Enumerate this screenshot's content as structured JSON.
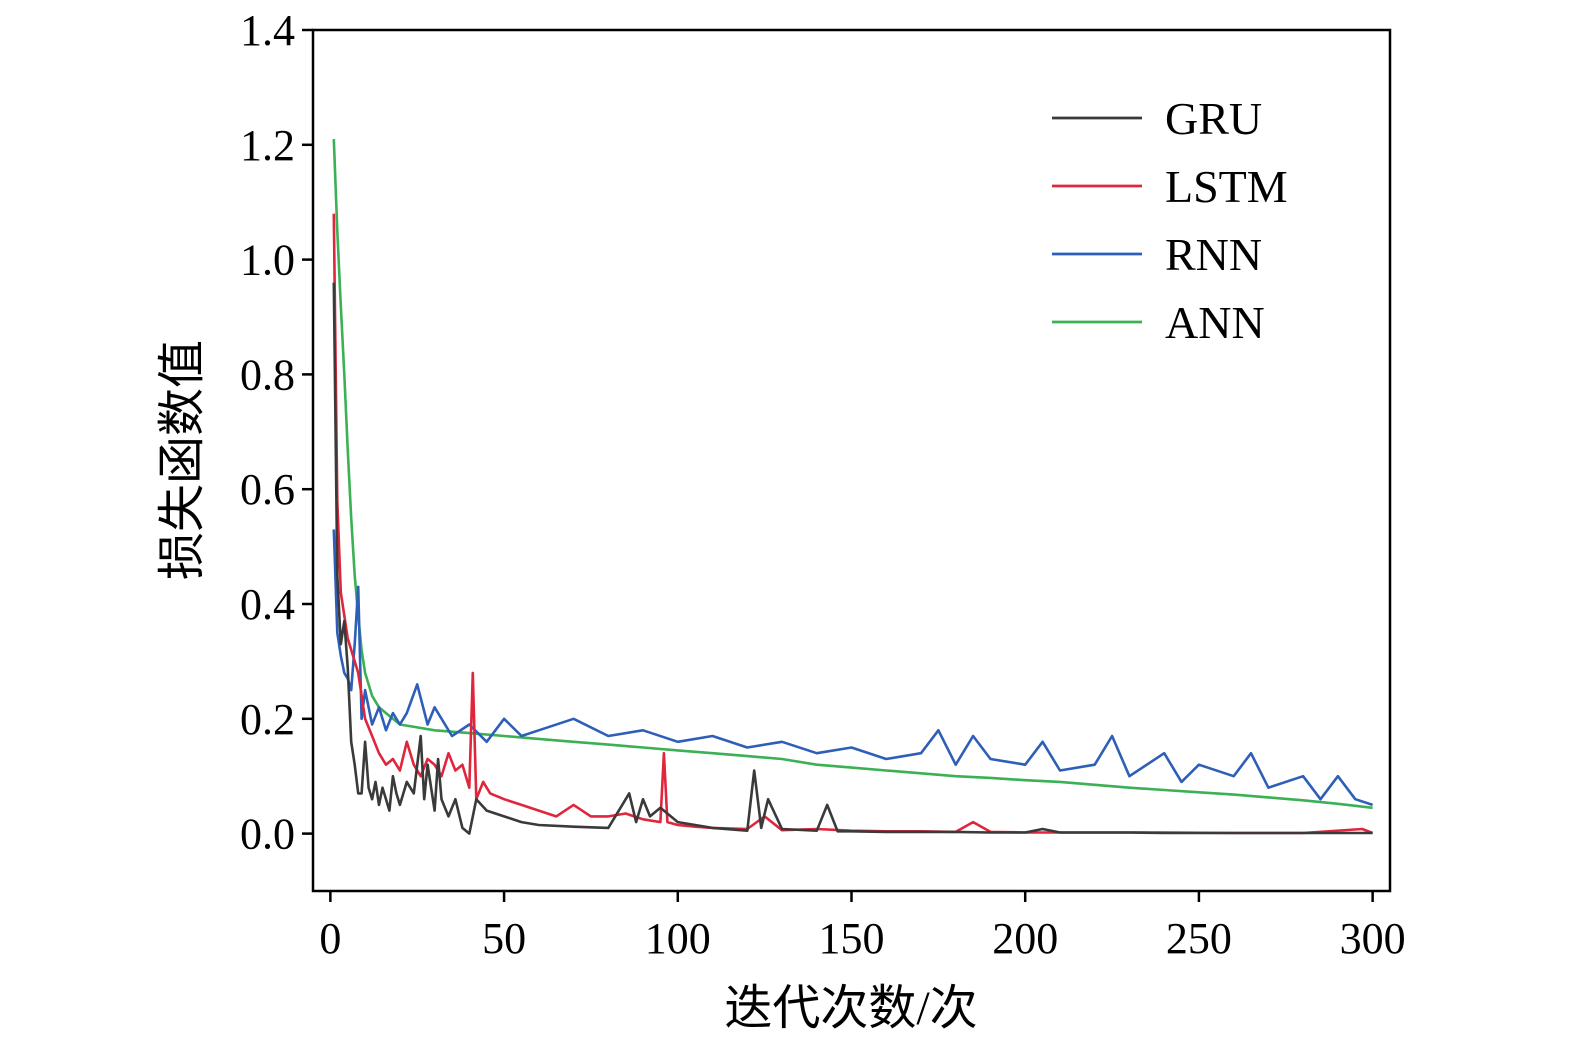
{
  "chart_data": {
    "type": "line",
    "xlabel": "迭代次数/次",
    "ylabel": "损失函数值",
    "xlim": [
      -5,
      305
    ],
    "ylim": [
      -0.1,
      1.4
    ],
    "xticks": [
      0,
      50,
      100,
      150,
      200,
      250,
      300
    ],
    "yticks": [
      0.0,
      0.2,
      0.4,
      0.6,
      0.8,
      1.0,
      1.2,
      1.4
    ],
    "ytick_labels": [
      "0.0",
      "0.2",
      "0.4",
      "0.6",
      "0.8",
      "1.0",
      "1.2",
      "1.4"
    ],
    "legend_position": "top-right",
    "grid": false,
    "series": [
      {
        "name": "GRU",
        "color": "#3a3a3a",
        "x": [
          1,
          2,
          3,
          4,
          5,
          6,
          7,
          8,
          9,
          10,
          11,
          12,
          13,
          14,
          15,
          16,
          17,
          18,
          19,
          20,
          22,
          24,
          26,
          27,
          28,
          30,
          31,
          32,
          34,
          36,
          38,
          40,
          42,
          45,
          50,
          55,
          60,
          70,
          80,
          86,
          88,
          90,
          92,
          95,
          100,
          110,
          120,
          122,
          124,
          126,
          130,
          140,
          143,
          146,
          150,
          160,
          170,
          180,
          190,
          200,
          205,
          210,
          220,
          230,
          240,
          250,
          260,
          270,
          280,
          290,
          300
        ],
        "values": [
          0.96,
          0.45,
          0.33,
          0.37,
          0.29,
          0.16,
          0.12,
          0.07,
          0.07,
          0.16,
          0.08,
          0.06,
          0.09,
          0.05,
          0.08,
          0.06,
          0.04,
          0.1,
          0.07,
          0.05,
          0.09,
          0.07,
          0.17,
          0.06,
          0.12,
          0.04,
          0.13,
          0.06,
          0.03,
          0.06,
          0.01,
          0.0,
          0.06,
          0.04,
          0.03,
          0.02,
          0.015,
          0.012,
          0.01,
          0.07,
          0.02,
          0.06,
          0.03,
          0.045,
          0.02,
          0.01,
          0.005,
          0.11,
          0.01,
          0.06,
          0.008,
          0.005,
          0.05,
          0.004,
          0.004,
          0.003,
          0.003,
          0.003,
          0.002,
          0.002,
          0.008,
          0.002,
          0.002,
          0.002,
          0.001,
          0.001,
          0.001,
          0.001,
          0.001,
          0.001,
          0.001
        ]
      },
      {
        "name": "LSTM",
        "color": "#e0263c",
        "x": [
          1,
          2,
          3,
          4,
          5,
          6,
          7,
          8,
          10,
          12,
          14,
          16,
          18,
          20,
          22,
          24,
          26,
          28,
          30,
          32,
          34,
          36,
          38,
          40,
          41,
          42,
          44,
          46,
          50,
          55,
          60,
          65,
          70,
          75,
          80,
          85,
          90,
          95,
          96,
          97,
          100,
          105,
          110,
          120,
          125,
          130,
          140,
          150,
          160,
          170,
          180,
          185,
          190,
          200,
          220,
          240,
          260,
          280,
          297,
          300
        ],
        "values": [
          1.08,
          0.58,
          0.42,
          0.38,
          0.34,
          0.32,
          0.3,
          0.28,
          0.2,
          0.17,
          0.14,
          0.12,
          0.13,
          0.11,
          0.16,
          0.12,
          0.1,
          0.13,
          0.12,
          0.1,
          0.14,
          0.11,
          0.12,
          0.08,
          0.28,
          0.06,
          0.09,
          0.07,
          0.06,
          0.05,
          0.04,
          0.03,
          0.05,
          0.03,
          0.03,
          0.035,
          0.025,
          0.02,
          0.14,
          0.02,
          0.015,
          0.012,
          0.01,
          0.008,
          0.03,
          0.006,
          0.008,
          0.005,
          0.004,
          0.004,
          0.003,
          0.02,
          0.003,
          0.002,
          0.002,
          0.002,
          0.001,
          0.001,
          0.008,
          0.001
        ]
      },
      {
        "name": "RNN",
        "color": "#2e5fb8",
        "x": [
          1,
          2,
          3,
          4,
          5,
          6,
          7,
          8,
          9,
          10,
          12,
          14,
          16,
          18,
          20,
          22,
          25,
          28,
          30,
          35,
          40,
          45,
          50,
          55,
          60,
          70,
          80,
          90,
          100,
          110,
          120,
          130,
          140,
          150,
          160,
          170,
          175,
          180,
          185,
          190,
          200,
          205,
          210,
          220,
          225,
          230,
          240,
          245,
          250,
          260,
          265,
          270,
          280,
          285,
          290,
          295,
          300
        ],
        "values": [
          0.53,
          0.35,
          0.31,
          0.28,
          0.27,
          0.25,
          0.33,
          0.43,
          0.2,
          0.25,
          0.19,
          0.22,
          0.18,
          0.21,
          0.19,
          0.21,
          0.26,
          0.19,
          0.22,
          0.17,
          0.19,
          0.16,
          0.2,
          0.17,
          0.18,
          0.2,
          0.17,
          0.18,
          0.16,
          0.17,
          0.15,
          0.16,
          0.14,
          0.15,
          0.13,
          0.14,
          0.18,
          0.12,
          0.17,
          0.13,
          0.12,
          0.16,
          0.11,
          0.12,
          0.17,
          0.1,
          0.14,
          0.09,
          0.12,
          0.1,
          0.14,
          0.08,
          0.1,
          0.06,
          0.1,
          0.06,
          0.05
        ]
      },
      {
        "name": "ANN",
        "color": "#3cb054",
        "x": [
          1,
          2,
          3,
          4,
          5,
          6,
          7,
          8,
          9,
          10,
          12,
          14,
          16,
          18,
          20,
          25,
          30,
          40,
          50,
          60,
          70,
          80,
          90,
          100,
          110,
          120,
          130,
          140,
          150,
          160,
          170,
          180,
          190,
          200,
          210,
          220,
          230,
          240,
          250,
          260,
          270,
          280,
          290,
          300
        ],
        "values": [
          1.21,
          1.05,
          0.92,
          0.8,
          0.67,
          0.55,
          0.45,
          0.38,
          0.32,
          0.28,
          0.24,
          0.22,
          0.21,
          0.2,
          0.19,
          0.185,
          0.18,
          0.175,
          0.17,
          0.165,
          0.16,
          0.155,
          0.15,
          0.145,
          0.14,
          0.135,
          0.13,
          0.12,
          0.115,
          0.11,
          0.105,
          0.1,
          0.097,
          0.093,
          0.09,
          0.085,
          0.08,
          0.076,
          0.072,
          0.068,
          0.063,
          0.058,
          0.052,
          0.045
        ]
      }
    ]
  }
}
